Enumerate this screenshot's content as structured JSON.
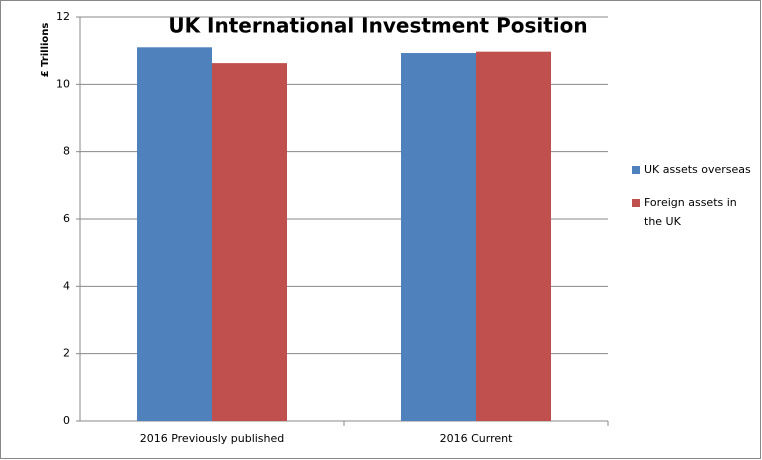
{
  "chart_data": {
    "type": "bar",
    "title": "UK International Investment Position",
    "y_label": "£ Trillions",
    "categories": [
      "2016 Previously published",
      "2016 Current"
    ],
    "series": [
      {
        "name": "UK assets overseas",
        "color": "#4f81bd",
        "values": [
          11.1,
          10.93
        ]
      },
      {
        "name": "Foreign assets in the UK",
        "color": "#c0504d",
        "values": [
          10.63,
          10.97
        ]
      }
    ],
    "ylim": [
      0,
      12
    ],
    "yticks": [
      0,
      2,
      4,
      6,
      8,
      10,
      12
    ],
    "grid": true,
    "legend": "right"
  }
}
